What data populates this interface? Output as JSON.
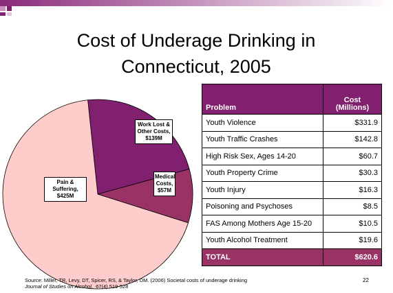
{
  "title": "Cost of Underage Drinking in Connecticut, 2005",
  "chart_data": {
    "type": "pie",
    "categories": [
      "Pain & Suffering,",
      "Work Lost & Other Costs,",
      "Medical Costs,"
    ],
    "values": [
      425,
      139,
      57
    ],
    "value_labels": [
      "$425M",
      "$139M",
      "$57M"
    ],
    "colors": [
      "#ffcccc",
      "#80206e",
      "#993366"
    ]
  },
  "table": {
    "header": [
      "Problem",
      "Cost (Millions)"
    ],
    "rows": [
      [
        "Youth Violence",
        "$331.9"
      ],
      [
        "Youth Traffic Crashes",
        "$142.8"
      ],
      [
        "High Risk Sex, Ages 14-20",
        "$60.7"
      ],
      [
        "Youth Property Crime",
        "$30.3"
      ],
      [
        "Youth Injury",
        "$16.3"
      ],
      [
        "Poisoning and Psychoses",
        "$8.5"
      ],
      [
        "FAS Among Mothers Age 15-20",
        "$10.5"
      ],
      [
        "Youth Alcohol Treatment",
        "$19.6"
      ]
    ],
    "total": [
      "TOTAL",
      "$620.6"
    ]
  },
  "source": {
    "line1": "Source: Miller, TR, Levy, DT, Spicer, RS, & Taylor, DM. (2006) Societal costs of underage drinking",
    "journal": "Journal of Studies on Alcohol,",
    "citation": "67(4) 519-528"
  },
  "page_number": "22"
}
